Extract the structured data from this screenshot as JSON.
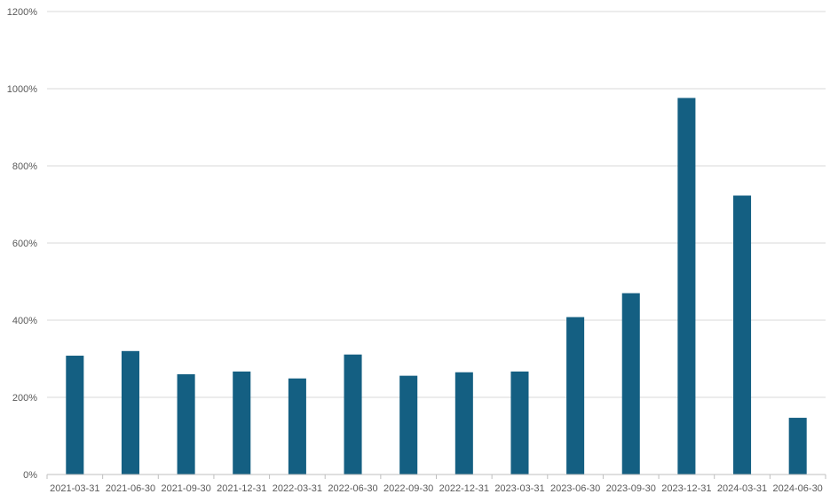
{
  "chart_data": {
    "type": "bar",
    "title": "",
    "xlabel": "",
    "ylabel": "",
    "categories": [
      "2021-03-31",
      "2021-06-30",
      "2021-09-30",
      "2021-12-31",
      "2022-03-31",
      "2022-06-30",
      "2022-09-30",
      "2022-12-31",
      "2023-03-31",
      "2023-06-30",
      "2023-09-30",
      "2023-12-31",
      "2024-03-31",
      "2024-06-30"
    ],
    "values": [
      308,
      320,
      260,
      267,
      249,
      311,
      256,
      265,
      267,
      408,
      470,
      976,
      723,
      147
    ],
    "value_unit": "%",
    "ylim": [
      0,
      1200
    ],
    "yticks": [
      0,
      200,
      400,
      600,
      800,
      1000,
      1200
    ],
    "ytick_labels": [
      "0%",
      "200%",
      "400%",
      "600%",
      "800%",
      "1000%",
      "1200%"
    ],
    "grid": true,
    "legend": "none",
    "colors": {
      "bar": "#145f82",
      "grid": "#d9d9d9",
      "axis": "#bfbfbf",
      "text": "#595959"
    }
  }
}
